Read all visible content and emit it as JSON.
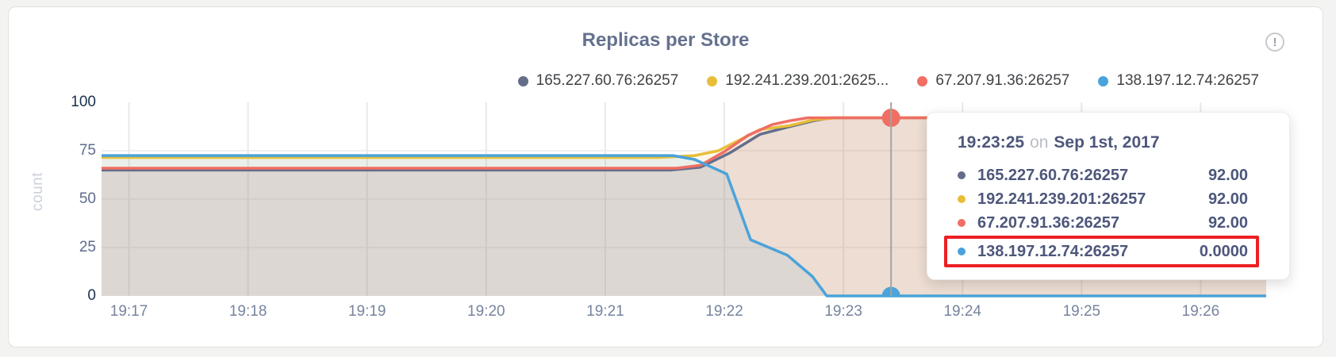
{
  "page": {
    "background": "#f3f3f2"
  },
  "icons": {
    "info_glyph": "!"
  },
  "colors": {
    "card_border": "#e2e1e0",
    "title": "#64718e",
    "grid": "#e9e9e9",
    "hover_line": "#a3a3a3",
    "highlight_box": "#ec2024",
    "axis_text": "#76849e"
  },
  "chart_data": {
    "type": "line",
    "title": "Replicas per Store",
    "ylabel": "count",
    "ylim": [
      0,
      100
    ],
    "yticks": [
      0,
      25,
      50,
      75,
      100
    ],
    "ygrid": [
      25,
      50,
      75
    ],
    "x_domain": [
      16.77,
      26.55
    ],
    "xticks": [
      {
        "t": 17,
        "label": "19:17"
      },
      {
        "t": 18,
        "label": "19:18"
      },
      {
        "t": 19,
        "label": "19:19"
      },
      {
        "t": 20,
        "label": "19:20"
      },
      {
        "t": 21,
        "label": "19:21"
      },
      {
        "t": 22,
        "label": "19:22"
      },
      {
        "t": 23,
        "label": "19:23"
      },
      {
        "t": 24,
        "label": "19:24"
      },
      {
        "t": 25,
        "label": "19:25"
      },
      {
        "t": 26,
        "label": "19:26"
      }
    ],
    "fill_opacity": 0.1,
    "series": [
      {
        "name": "165.227.60.76:26257",
        "legend_label": "165.227.60.76:26257",
        "color": "#646e89",
        "points": [
          [
            16.77,
            65
          ],
          [
            21.55,
            65
          ],
          [
            21.8,
            66.5
          ],
          [
            22.05,
            74
          ],
          [
            22.3,
            83.5
          ],
          [
            22.55,
            87.5
          ],
          [
            22.75,
            90.5
          ],
          [
            22.9,
            92
          ],
          [
            26.55,
            92
          ]
        ]
      },
      {
        "name": "192.241.239.201:26257",
        "legend_label": "192.241.239.201:2625...",
        "color": "#e8be39",
        "points": [
          [
            16.77,
            71.5
          ],
          [
            21.45,
            71.5
          ],
          [
            21.75,
            72.5
          ],
          [
            21.95,
            75
          ],
          [
            22.3,
            86
          ],
          [
            22.55,
            88
          ],
          [
            22.75,
            91
          ],
          [
            22.95,
            92
          ],
          [
            26.55,
            92
          ]
        ]
      },
      {
        "name": "67.207.91.36:26257",
        "legend_label": "67.207.91.36:26257",
        "color": "#f06e64",
        "points": [
          [
            16.77,
            66
          ],
          [
            21.6,
            66
          ],
          [
            21.8,
            67.5
          ],
          [
            22.0,
            74.5
          ],
          [
            22.2,
            83
          ],
          [
            22.4,
            88.5
          ],
          [
            22.55,
            90.5
          ],
          [
            22.7,
            92
          ],
          [
            26.55,
            92
          ]
        ]
      },
      {
        "name": "138.197.12.74:26257",
        "legend_label": "138.197.12.74:26257",
        "color": "#4aa3da",
        "points": [
          [
            16.77,
            72.5
          ],
          [
            21.57,
            72.5
          ],
          [
            21.75,
            70.5
          ],
          [
            22.02,
            63
          ],
          [
            22.22,
            29
          ],
          [
            22.53,
            21
          ],
          [
            22.74,
            10
          ],
          [
            22.86,
            0
          ],
          [
            26.55,
            0
          ]
        ]
      }
    ],
    "hover": {
      "t": 23.4,
      "marker_top_series": 2,
      "marker_top_value": 92,
      "marker_bottom_series": 3,
      "marker_bottom_value": 0
    }
  },
  "tooltip": {
    "time": "19:23:25",
    "on": "on",
    "date": "Sep 1st, 2017",
    "rows": [
      {
        "name": "165.227.60.76:26257",
        "value": "92.00",
        "color": "#646e89",
        "highlight": false
      },
      {
        "name": "192.241.239.201:26257",
        "value": "92.00",
        "color": "#e8be39",
        "highlight": false
      },
      {
        "name": "67.207.91.36:26257",
        "value": "92.00",
        "color": "#f06e64",
        "highlight": false
      },
      {
        "name": "138.197.12.74:26257",
        "value": "0.0000",
        "color": "#4aa3da",
        "highlight": true
      }
    ]
  }
}
